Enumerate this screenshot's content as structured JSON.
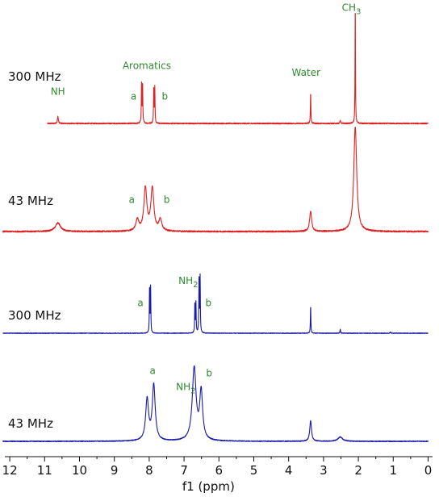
{
  "chart_data": {
    "type": "line",
    "xlabel": "f1 (ppm)",
    "x_reversed": true,
    "xlim": [
      12.2,
      0
    ],
    "xticks": [
      "12",
      "11",
      "10",
      "9",
      "8",
      "7",
      "6",
      "5",
      "4",
      "3",
      "2",
      "1",
      "0"
    ],
    "grid": false,
    "colors": {
      "red": "#dd2222",
      "blue": "#1a1aa8",
      "label": "#2e8b2e",
      "text": "#111111"
    },
    "series": [
      {
        "name": "300 MHz",
        "color": "red",
        "noise": 0.01,
        "peaks": [
          {
            "ppm": 10.62,
            "h": 0.06,
            "w": 0.015
          },
          {
            "ppm": 8.22,
            "h": 0.33,
            "w": 0.008
          },
          {
            "ppm": 8.19,
            "h": 0.33,
            "w": 0.008
          },
          {
            "ppm": 7.87,
            "h": 0.3,
            "w": 0.008
          },
          {
            "ppm": 7.84,
            "h": 0.3,
            "w": 0.008
          },
          {
            "ppm": 3.37,
            "h": 0.26,
            "w": 0.008
          },
          {
            "ppm": 2.52,
            "h": 0.025,
            "w": 0.012
          },
          {
            "ppm": 2.09,
            "h": 1.0,
            "w": 0.007
          }
        ],
        "annotations": [
          {
            "text": "NH",
            "ppm": 10.62,
            "level": 0.24
          },
          {
            "text": "Aromatics",
            "ppm": 8.07,
            "level": 0.46
          },
          {
            "text": "a",
            "ppm": 8.45,
            "level": 0.2
          },
          {
            "text": "b",
            "ppm": 7.55,
            "level": 0.2
          },
          {
            "text": "Water",
            "ppm": 3.5,
            "level": 0.4
          },
          {
            "text": "CH3",
            "ppm": 2.2,
            "level": 0.95
          }
        ]
      },
      {
        "name": "43 MHz",
        "color": "red",
        "noise": 0.015,
        "peaks": [
          {
            "ppm": 10.62,
            "h": 0.09,
            "w": 0.09
          },
          {
            "ppm": 8.34,
            "h": 0.12,
            "w": 0.05
          },
          {
            "ppm": 8.11,
            "h": 0.45,
            "w": 0.05
          },
          {
            "ppm": 7.91,
            "h": 0.45,
            "w": 0.05
          },
          {
            "ppm": 7.68,
            "h": 0.12,
            "w": 0.05
          },
          {
            "ppm": 3.37,
            "h": 0.21,
            "w": 0.035
          },
          {
            "ppm": 2.09,
            "h": 1.1,
            "w": 0.05
          }
        ],
        "annotations": [
          {
            "text": "a",
            "ppm": 8.5,
            "level": 0.3
          },
          {
            "text": "b",
            "ppm": 7.5,
            "level": 0.3
          }
        ]
      },
      {
        "name": "300 MHz",
        "color": "blue",
        "noise": 0.01,
        "peaks": [
          {
            "ppm": 7.99,
            "h": 0.7,
            "w": 0.008
          },
          {
            "ppm": 7.96,
            "h": 0.7,
            "w": 0.008
          },
          {
            "ppm": 6.69,
            "h": 0.46,
            "w": 0.008
          },
          {
            "ppm": 6.66,
            "h": 0.46,
            "w": 0.008
          },
          {
            "ppm": 6.57,
            "h": 0.86,
            "w": 0.008
          },
          {
            "ppm": 6.54,
            "h": 0.86,
            "w": 0.008
          },
          {
            "ppm": 3.37,
            "h": 0.42,
            "w": 0.008
          },
          {
            "ppm": 2.52,
            "h": 0.06,
            "w": 0.01
          },
          {
            "ppm": 1.08,
            "h": 0.02,
            "w": 0.01
          }
        ],
        "annotations": [
          {
            "text": "a",
            "ppm": 8.25,
            "level": 0.42
          },
          {
            "text": "NH2",
            "ppm": 6.88,
            "level": 0.76
          },
          {
            "text": "b",
            "ppm": 6.3,
            "level": 0.42
          }
        ]
      },
      {
        "name": "43 MHz",
        "color": "blue",
        "noise": 0.01,
        "peaks": [
          {
            "ppm": 8.06,
            "h": 0.48,
            "w": 0.05
          },
          {
            "ppm": 7.87,
            "h": 0.65,
            "w": 0.05
          },
          {
            "ppm": 6.71,
            "h": 0.85,
            "w": 0.065
          },
          {
            "ppm": 6.51,
            "h": 0.56,
            "w": 0.05
          },
          {
            "ppm": 3.37,
            "h": 0.24,
            "w": 0.03
          },
          {
            "ppm": 2.52,
            "h": 0.05,
            "w": 0.08
          }
        ],
        "annotations": [
          {
            "text": "a",
            "ppm": 7.9,
            "level": 0.79
          },
          {
            "text": "NH2",
            "ppm": 6.95,
            "level": 0.6
          },
          {
            "text": "b",
            "ppm": 6.28,
            "level": 0.76
          }
        ]
      }
    ]
  }
}
